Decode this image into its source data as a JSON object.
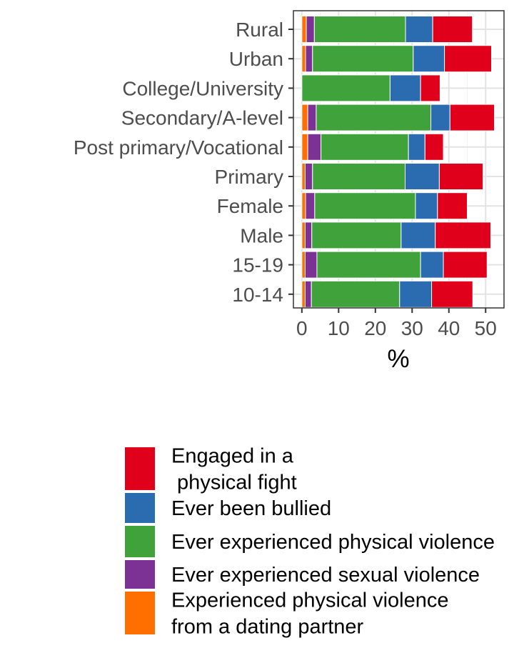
{
  "chart_data": {
    "type": "bar",
    "orientation": "horizontal",
    "stacked": true,
    "categories": [
      "Rural",
      "Urban",
      "College/University",
      "Secondary/A-level",
      "Post primary/Vocational",
      "Primary",
      "Female",
      "Male",
      "15-19",
      "10-14"
    ],
    "series": [
      {
        "name": "Experienced physical violence\nfrom a dating partner",
        "color": "#FF6F00",
        "values": [
          1.2,
          1.0,
          0.0,
          1.6,
          1.6,
          0.9,
          1.0,
          0.9,
          0.9,
          0.9
        ]
      },
      {
        "name": "Ever experienced sexual violence",
        "color": "#7B3294",
        "values": [
          2.2,
          1.9,
          0.0,
          2.3,
          3.6,
          2.0,
          2.5,
          1.8,
          3.2,
          1.7
        ]
      },
      {
        "name": "Ever experienced physical violence",
        "color": "#3FA23B",
        "values": [
          24.8,
          27.4,
          24.0,
          31.2,
          23.8,
          25.2,
          27.4,
          24.3,
          28.2,
          24.0
        ]
      },
      {
        "name": "Ever been bullied",
        "color": "#2B6CB0",
        "values": [
          7.4,
          8.5,
          8.3,
          5.2,
          4.5,
          9.3,
          6.0,
          9.3,
          6.2,
          8.7
        ]
      },
      {
        "name": "Engaged in a\n physical fight",
        "color": "#E0001B",
        "values": [
          10.8,
          12.8,
          5.3,
          12.1,
          5.0,
          11.9,
          8.1,
          15.1,
          11.9,
          11.2
        ]
      }
    ],
    "legend_order": [
      4,
      3,
      2,
      1,
      0
    ],
    "xlabel": "%",
    "ylabel": "",
    "xlim": [
      -2.3,
      55.0
    ],
    "xticks": [
      0,
      10,
      20,
      30,
      40,
      50
    ],
    "xtick_labels": [
      "0",
      "10",
      "20",
      "30",
      "40",
      "50"
    ],
    "grid": true,
    "legend_position": "bottom"
  }
}
